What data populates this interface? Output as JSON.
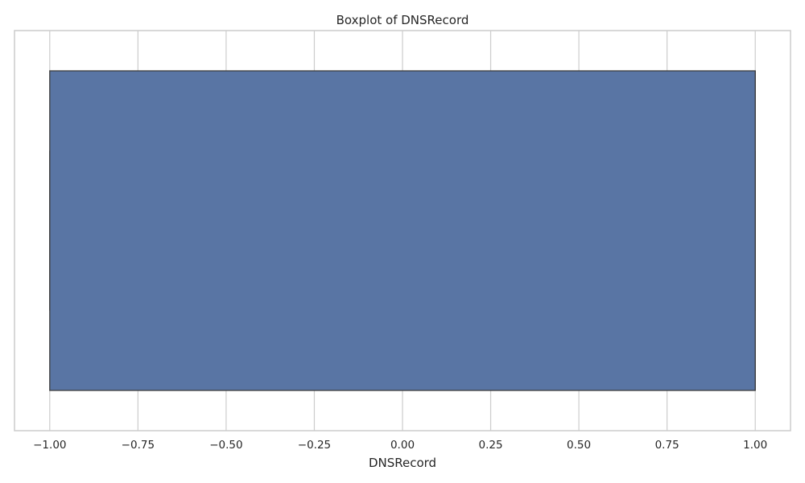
{
  "chart_data": {
    "type": "boxplot",
    "title": "Boxplot of DNSRecord",
    "xlabel": "DNSRecord",
    "ylabel": "",
    "xlim": [
      -1.1,
      1.1
    ],
    "ticks": [
      -1.0,
      -0.75,
      -0.5,
      -0.25,
      0.0,
      0.25,
      0.5,
      0.75,
      1.0
    ],
    "tick_labels": [
      "−1.00",
      "−0.75",
      "−0.50",
      "−0.25",
      "0.00",
      "0.25",
      "0.50",
      "0.75",
      "1.00"
    ],
    "orientation": "horizontal",
    "grid": true,
    "box": {
      "min": -1.0,
      "q1": -1.0,
      "median": 1.0,
      "q3": 1.0,
      "max": 1.0
    },
    "colors": {
      "box_fill": "#5975a4",
      "box_edge": "#3f3f3f",
      "grid": "#cccccc",
      "frame": "#cccccc"
    }
  }
}
